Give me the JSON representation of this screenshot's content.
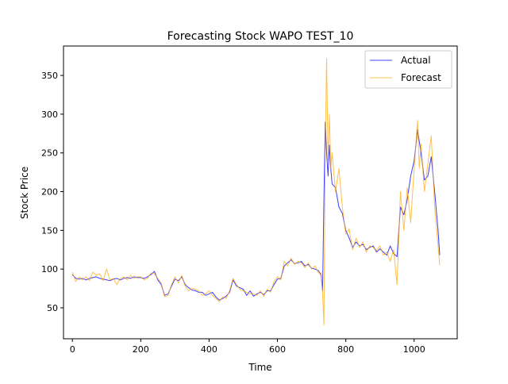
{
  "chart_data": {
    "type": "line",
    "title": "Forecasting Stock WAPO TEST_10",
    "xlabel": "Time",
    "ylabel": "Stock Price",
    "xlim": [
      -26,
      1126
    ],
    "ylim": [
      10,
      388
    ],
    "xticks": [
      0,
      200,
      400,
      600,
      800,
      1000
    ],
    "yticks": [
      50,
      100,
      150,
      200,
      250,
      300,
      350
    ],
    "grid": false,
    "legend_position": "upper right",
    "series": [
      {
        "name": "Actual",
        "color": "#0000ff",
        "points": [
          [
            0,
            93
          ],
          [
            10,
            88
          ],
          [
            20,
            87
          ],
          [
            30,
            88
          ],
          [
            40,
            86
          ],
          [
            50,
            88
          ],
          [
            60,
            89
          ],
          [
            70,
            90
          ],
          [
            80,
            88
          ],
          [
            90,
            87
          ],
          [
            100,
            86
          ],
          [
            110,
            85
          ],
          [
            120,
            87
          ],
          [
            130,
            88
          ],
          [
            140,
            86
          ],
          [
            150,
            88
          ],
          [
            160,
            89
          ],
          [
            170,
            88
          ],
          [
            180,
            90
          ],
          [
            190,
            89
          ],
          [
            200,
            89
          ],
          [
            210,
            88
          ],
          [
            220,
            90
          ],
          [
            230,
            93
          ],
          [
            240,
            97
          ],
          [
            250,
            86
          ],
          [
            260,
            80
          ],
          [
            270,
            66
          ],
          [
            280,
            68
          ],
          [
            290,
            78
          ],
          [
            300,
            87
          ],
          [
            310,
            85
          ],
          [
            320,
            90
          ],
          [
            330,
            80
          ],
          [
            340,
            76
          ],
          [
            350,
            73
          ],
          [
            360,
            72
          ],
          [
            370,
            70
          ],
          [
            380,
            70
          ],
          [
            390,
            66
          ],
          [
            400,
            68
          ],
          [
            410,
            70
          ],
          [
            420,
            64
          ],
          [
            430,
            60
          ],
          [
            440,
            62
          ],
          [
            450,
            65
          ],
          [
            460,
            70
          ],
          [
            470,
            86
          ],
          [
            480,
            78
          ],
          [
            490,
            76
          ],
          [
            500,
            74
          ],
          [
            510,
            66
          ],
          [
            520,
            72
          ],
          [
            530,
            65
          ],
          [
            540,
            68
          ],
          [
            550,
            70
          ],
          [
            560,
            67
          ],
          [
            570,
            72
          ],
          [
            580,
            72
          ],
          [
            590,
            80
          ],
          [
            600,
            87
          ],
          [
            610,
            88
          ],
          [
            620,
            104
          ],
          [
            630,
            108
          ],
          [
            640,
            112
          ],
          [
            650,
            107
          ],
          [
            660,
            108
          ],
          [
            670,
            110
          ],
          [
            680,
            104
          ],
          [
            690,
            106
          ],
          [
            700,
            101
          ],
          [
            710,
            100
          ],
          [
            720,
            98
          ],
          [
            728,
            92
          ],
          [
            732,
            72
          ],
          [
            736,
            190
          ],
          [
            740,
            290
          ],
          [
            744,
            250
          ],
          [
            748,
            220
          ],
          [
            752,
            260
          ],
          [
            756,
            230
          ],
          [
            760,
            210
          ],
          [
            770,
            205
          ],
          [
            780,
            180
          ],
          [
            790,
            172
          ],
          [
            800,
            150
          ],
          [
            810,
            140
          ],
          [
            820,
            128
          ],
          [
            830,
            135
          ],
          [
            840,
            130
          ],
          [
            850,
            132
          ],
          [
            860,
            125
          ],
          [
            870,
            128
          ],
          [
            880,
            130
          ],
          [
            890,
            122
          ],
          [
            900,
            126
          ],
          [
            910,
            122
          ],
          [
            920,
            118
          ],
          [
            930,
            130
          ],
          [
            940,
            120
          ],
          [
            950,
            116
          ],
          [
            960,
            180
          ],
          [
            970,
            170
          ],
          [
            980,
            190
          ],
          [
            990,
            220
          ],
          [
            1000,
            240
          ],
          [
            1010,
            280
          ],
          [
            1015,
            265
          ],
          [
            1020,
            250
          ],
          [
            1030,
            215
          ],
          [
            1040,
            220
          ],
          [
            1050,
            245
          ],
          [
            1060,
            200
          ],
          [
            1070,
            150
          ],
          [
            1075,
            118
          ]
        ]
      },
      {
        "name": "Forecast",
        "color": "#ffa500",
        "points": [
          [
            0,
            96
          ],
          [
            10,
            84
          ],
          [
            20,
            90
          ],
          [
            30,
            86
          ],
          [
            40,
            90
          ],
          [
            50,
            85
          ],
          [
            60,
            96
          ],
          [
            70,
            92
          ],
          [
            80,
            94
          ],
          [
            90,
            85
          ],
          [
            100,
            100
          ],
          [
            110,
            86
          ],
          [
            120,
            88
          ],
          [
            130,
            80
          ],
          [
            140,
            88
          ],
          [
            150,
            90
          ],
          [
            160,
            86
          ],
          [
            170,
            92
          ],
          [
            180,
            88
          ],
          [
            190,
            90
          ],
          [
            200,
            90
          ],
          [
            210,
            86
          ],
          [
            220,
            88
          ],
          [
            230,
            95
          ],
          [
            240,
            94
          ],
          [
            250,
            88
          ],
          [
            260,
            82
          ],
          [
            270,
            64
          ],
          [
            280,
            66
          ],
          [
            290,
            80
          ],
          [
            300,
            90
          ],
          [
            310,
            82
          ],
          [
            320,
            92
          ],
          [
            330,
            78
          ],
          [
            340,
            72
          ],
          [
            350,
            75
          ],
          [
            360,
            74
          ],
          [
            370,
            72
          ],
          [
            380,
            66
          ],
          [
            390,
            68
          ],
          [
            400,
            72
          ],
          [
            410,
            66
          ],
          [
            420,
            62
          ],
          [
            430,
            58
          ],
          [
            440,
            64
          ],
          [
            450,
            62
          ],
          [
            460,
            72
          ],
          [
            470,
            88
          ],
          [
            480,
            80
          ],
          [
            490,
            74
          ],
          [
            500,
            72
          ],
          [
            510,
            70
          ],
          [
            520,
            68
          ],
          [
            530,
            68
          ],
          [
            540,
            66
          ],
          [
            550,
            72
          ],
          [
            560,
            65
          ],
          [
            570,
            74
          ],
          [
            580,
            70
          ],
          [
            590,
            84
          ],
          [
            600,
            90
          ],
          [
            610,
            86
          ],
          [
            620,
            110
          ],
          [
            630,
            104
          ],
          [
            640,
            114
          ],
          [
            650,
            106
          ],
          [
            660,
            110
          ],
          [
            670,
            108
          ],
          [
            680,
            102
          ],
          [
            690,
            108
          ],
          [
            700,
            100
          ],
          [
            710,
            104
          ],
          [
            720,
            95
          ],
          [
            728,
            95
          ],
          [
            732,
            70
          ],
          [
            736,
            28
          ],
          [
            740,
            250
          ],
          [
            744,
            372
          ],
          [
            748,
            240
          ],
          [
            752,
            300
          ],
          [
            756,
            230
          ],
          [
            760,
            250
          ],
          [
            770,
            200
          ],
          [
            780,
            230
          ],
          [
            790,
            180
          ],
          [
            800,
            145
          ],
          [
            810,
            152
          ],
          [
            820,
            125
          ],
          [
            830,
            140
          ],
          [
            840,
            128
          ],
          [
            850,
            135
          ],
          [
            860,
            122
          ],
          [
            870,
            130
          ],
          [
            880,
            128
          ],
          [
            890,
            124
          ],
          [
            900,
            130
          ],
          [
            910,
            118
          ],
          [
            920,
            122
          ],
          [
            930,
            110
          ],
          [
            940,
            125
          ],
          [
            950,
            80
          ],
          [
            960,
            200
          ],
          [
            970,
            150
          ],
          [
            980,
            205
          ],
          [
            990,
            160
          ],
          [
            1000,
            230
          ],
          [
            1010,
            292
          ],
          [
            1015,
            230
          ],
          [
            1020,
            262
          ],
          [
            1030,
            200
          ],
          [
            1040,
            235
          ],
          [
            1050,
            272
          ],
          [
            1060,
            180
          ],
          [
            1070,
            130
          ],
          [
            1075,
            105
          ]
        ]
      }
    ]
  }
}
